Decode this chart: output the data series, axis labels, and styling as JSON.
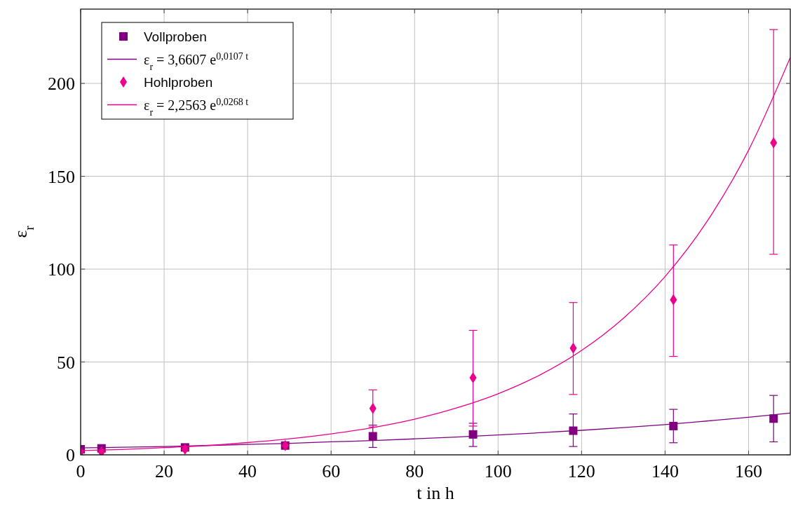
{
  "chart_data": {
    "type": "scatter",
    "xlabel": "t in h",
    "ylabel": "ε$_{r}$",
    "xlim": [
      0,
      170
    ],
    "ylim": [
      0,
      240
    ],
    "xticks": [
      0,
      20,
      40,
      60,
      80,
      100,
      120,
      140,
      160
    ],
    "yticks": [
      0,
      50,
      100,
      150,
      200
    ],
    "grid": true,
    "legend": "top left",
    "series": [
      {
        "name": "Vollproben",
        "marker": "square",
        "color": "#800080",
        "x": [
          0,
          5,
          25,
          49,
          70,
          94,
          118,
          142,
          166
        ],
        "values": [
          3,
          3.5,
          4,
          5,
          10,
          11,
          13,
          15.5,
          19.5
        ],
        "errors": [
          null,
          null,
          null,
          null,
          [
            4,
            16
          ],
          [
            4.5,
            17
          ],
          [
            4.5,
            22
          ],
          [
            6.5,
            24.5
          ],
          [
            7,
            32
          ]
        ]
      },
      {
        "name": "ε$_{r}$ = 3,6607 e$^{0,0107 t}$",
        "type": "line",
        "marker": "none",
        "line_style": "solid",
        "color": "#800080",
        "x": [
          0,
          10,
          20,
          30,
          40,
          50,
          60,
          70,
          80,
          90,
          100,
          110,
          120,
          130,
          140,
          150,
          160,
          170
        ],
        "values": [
          3.7,
          4.1,
          4.5,
          5.0,
          5.6,
          6.2,
          7.0,
          7.7,
          8.6,
          9.6,
          10.7,
          11.9,
          13.2,
          14.7,
          16.3,
          18.2,
          20.2,
          22.5
        ]
      },
      {
        "name": "Hohlproben",
        "marker": "diamond",
        "color": "#ec008c",
        "x": [
          0,
          5,
          25,
          49,
          70,
          94,
          118,
          142,
          166
        ],
        "values": [
          1.5,
          1.5,
          3,
          5,
          25,
          41.5,
          57.5,
          83.5,
          168
        ],
        "errors": [
          null,
          null,
          null,
          null,
          [
            15,
            35
          ],
          [
            15.5,
            67
          ],
          [
            32.5,
            82
          ],
          [
            53,
            113
          ],
          [
            108,
            229
          ]
        ]
      },
      {
        "name": "ε$_{r}$ = 2,2563 e$^{0,0268 t}$",
        "type": "line",
        "marker": "none",
        "line_style": "solid",
        "color": "#ec008c",
        "x": [
          0,
          10,
          20,
          30,
          40,
          50,
          60,
          70,
          80,
          90,
          100,
          110,
          120,
          130,
          140,
          150,
          160,
          170
        ],
        "values": [
          2.3,
          2.9,
          3.9,
          5.0,
          6.6,
          8.6,
          11.3,
          14.7,
          19.2,
          25.2,
          32.9,
          43.0,
          56.2,
          73.5,
          96.0,
          125.5,
          164,
          214
        ]
      }
    ]
  }
}
